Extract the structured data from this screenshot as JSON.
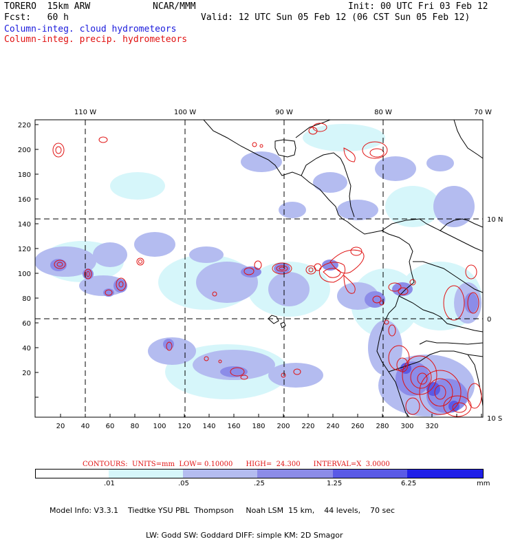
{
  "header": {
    "model": "TORERO  15km ARW",
    "org": "NCAR/MMM",
    "init": "Init: 00 UTC Fri 03 Feb 12",
    "fcst": "Fcst:   60 h",
    "valid": "Valid: 12 UTC Sun 05 Feb 12 (06 CST Sun 05 Feb 12)",
    "field_blue": "Column-integ. cloud hydrometeors",
    "field_red": "Column-integ. precip. hydrometeors"
  },
  "colors": {
    "cloud_light": "#d6f6fa",
    "cloud_1": "#b4bcf0",
    "cloud_2": "#8c8ce8",
    "cloud_3": "#5a5ae6",
    "cloud_4": "#2020e8",
    "precip": "#e01010",
    "coast": "#000000"
  },
  "top_lon_labels": [
    "110 W",
    "100 W",
    "90 W",
    "80 W",
    "70 W"
  ],
  "right_lat_labels": [
    "10 N",
    "0",
    "10 S"
  ],
  "y_ticks": [
    "220",
    "200",
    "180",
    "160",
    "140",
    "120",
    "100",
    "80",
    "60",
    "40",
    "20"
  ],
  "x_ticks": [
    "20",
    "40",
    "60",
    "80",
    "100",
    "120",
    "140",
    "160",
    "180",
    "200",
    "220",
    "240",
    "260",
    "280",
    "300",
    "320"
  ],
  "contour_info": "CONTOURS:  UNITS=mm  LOW= 0.10000      HIGH=  24.300      INTERVAL=X  3.0000",
  "legend": {
    "labels": [
      ".01",
      ".05",
      ".25",
      "1.25",
      "6.25"
    ],
    "unit": "mm"
  },
  "model_info_line1": "Model Info: V3.3.1    Tiedtke YSU PBL  Thompson     Noah LSM  15 km,    44 levels,    70 sec",
  "model_info_line2": "LW: Godd SW: Goddard DIFF: simple KM: 2D Smagor"
}
